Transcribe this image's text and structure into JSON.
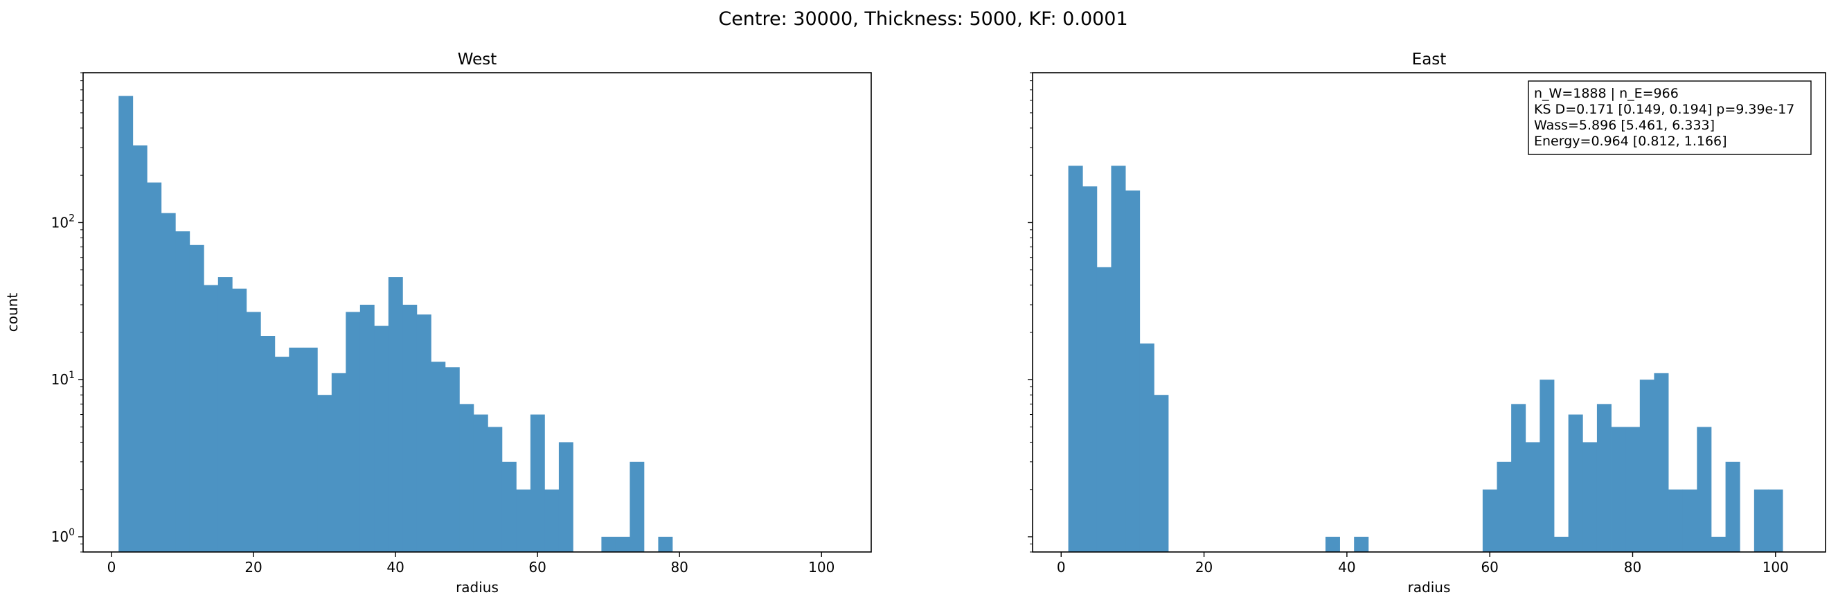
{
  "suptitle": "Centre: 30000, Thickness: 5000, KF: 0.0001",
  "chart_data": [
    {
      "type": "bar",
      "title": "West",
      "xlabel": "radius",
      "ylabel": "count",
      "yscale": "log",
      "xlim": [
        -4,
        107
      ],
      "ylim": [
        0.8,
        900
      ],
      "xticks": [
        0,
        20,
        40,
        60,
        80,
        100
      ],
      "yticks": [
        {
          "value": 1,
          "label": "10^0"
        },
        {
          "value": 10,
          "label": "10^1"
        },
        {
          "value": 100,
          "label": "10^2"
        }
      ],
      "bin_edges": [
        1,
        3,
        5,
        7,
        9,
        11,
        13,
        15,
        17,
        19,
        21,
        23,
        25,
        27,
        29,
        31,
        33,
        35,
        37,
        39,
        41,
        43,
        45,
        47,
        49,
        51,
        53,
        55,
        57,
        59,
        61,
        63,
        65,
        67,
        69,
        71,
        73,
        75,
        77,
        79,
        81,
        83,
        85,
        87,
        89,
        91,
        93,
        95,
        97,
        99,
        101,
        103
      ],
      "values": [
        640,
        310,
        180,
        115,
        88,
        72,
        40,
        45,
        38,
        27,
        19,
        14,
        16,
        16,
        8,
        11,
        27,
        30,
        22,
        45,
        30,
        26,
        13,
        12,
        7,
        6,
        5,
        3,
        2,
        6,
        2,
        4,
        0,
        0,
        1,
        1,
        3,
        0,
        1,
        0,
        0,
        0,
        0,
        0,
        0,
        0,
        0,
        0,
        0,
        0,
        0
      ],
      "color": "#4c93c3",
      "annotation": []
    },
    {
      "type": "bar",
      "title": "East",
      "xlabel": "radius",
      "ylabel": "",
      "yscale": "log",
      "xlim": [
        -4,
        107
      ],
      "ylim": [
        0.8,
        900
      ],
      "xticks": [
        0,
        20,
        40,
        60,
        80,
        100
      ],
      "yticks": [
        {
          "value": 1,
          "label": ""
        },
        {
          "value": 10,
          "label": ""
        },
        {
          "value": 100,
          "label": ""
        }
      ],
      "bin_edges": [
        1,
        3,
        5,
        7,
        9,
        11,
        13,
        15,
        17,
        19,
        21,
        23,
        25,
        27,
        29,
        31,
        33,
        35,
        37,
        39,
        41,
        43,
        45,
        47,
        49,
        51,
        53,
        55,
        57,
        59,
        61,
        63,
        65,
        67,
        69,
        71,
        73,
        75,
        77,
        79,
        81,
        83,
        85,
        87,
        89,
        91,
        93,
        95,
        97,
        99,
        101,
        103
      ],
      "values": [
        230,
        170,
        52,
        230,
        160,
        17,
        8,
        0,
        0,
        0,
        0,
        0,
        0,
        0,
        0,
        0,
        0,
        0,
        1,
        0,
        1,
        0,
        0,
        0,
        0,
        0,
        0,
        0,
        0,
        2,
        3,
        7,
        4,
        10,
        1,
        6,
        4,
        7,
        5,
        5,
        10,
        11,
        2,
        2,
        5,
        1,
        3,
        0,
        2,
        2,
        0
      ],
      "color": "#4c93c3",
      "annotation": [
        "n_W=1888 | n_E=966",
        "KS D=0.171 [0.149, 0.194]  p=9.39e-17",
        "Wass=5.896 [5.461, 6.333]",
        "Energy=0.964 [0.812, 1.166]"
      ]
    }
  ]
}
